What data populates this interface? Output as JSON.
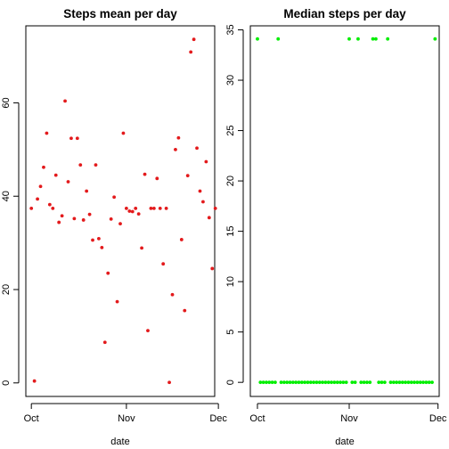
{
  "chart_data": [
    {
      "type": "scatter",
      "title": "Steps mean per day",
      "xlabel": "date",
      "ylabel": "",
      "color": "#e31a1c",
      "xlim": [
        -1.8,
        59.8
      ],
      "ylim": [
        -2.9,
        76.5
      ],
      "x_ticks": [
        {
          "label": "Oct",
          "value": 0
        },
        {
          "label": "Nov",
          "value": 31
        },
        {
          "label": "Dec",
          "value": 61
        }
      ],
      "y_ticks": [
        0,
        20,
        40,
        60
      ],
      "points": [
        {
          "x": 0,
          "y": 37.4
        },
        {
          "x": 1,
          "y": 0.4
        },
        {
          "x": 2,
          "y": 39.4
        },
        {
          "x": 3,
          "y": 42.1
        },
        {
          "x": 4,
          "y": 46.2
        },
        {
          "x": 5,
          "y": 53.5
        },
        {
          "x": 6,
          "y": 38.2
        },
        {
          "x": 7,
          "y": 37.4
        },
        {
          "x": 8,
          "y": 44.5
        },
        {
          "x": 9,
          "y": 34.4
        },
        {
          "x": 10,
          "y": 35.8
        },
        {
          "x": 11,
          "y": 60.4
        },
        {
          "x": 12,
          "y": 43.1
        },
        {
          "x": 13,
          "y": 52.4
        },
        {
          "x": 14,
          "y": 35.2
        },
        {
          "x": 15,
          "y": 52.4
        },
        {
          "x": 16,
          "y": 46.7
        },
        {
          "x": 17,
          "y": 34.9
        },
        {
          "x": 18,
          "y": 41.1
        },
        {
          "x": 19,
          "y": 36.1
        },
        {
          "x": 20,
          "y": 30.6
        },
        {
          "x": 21,
          "y": 46.7
        },
        {
          "x": 22,
          "y": 30.9
        },
        {
          "x": 23,
          "y": 29.0
        },
        {
          "x": 24,
          "y": 8.7
        },
        {
          "x": 25,
          "y": 23.5
        },
        {
          "x": 26,
          "y": 35.1
        },
        {
          "x": 27,
          "y": 39.8
        },
        {
          "x": 28,
          "y": 17.4
        },
        {
          "x": 29,
          "y": 34.1
        },
        {
          "x": 30,
          "y": 53.5
        },
        {
          "x": 31,
          "y": 37.4
        },
        {
          "x": 32,
          "y": 36.8
        },
        {
          "x": 33,
          "y": 36.7
        },
        {
          "x": 34,
          "y": 37.4
        },
        {
          "x": 35,
          "y": 36.2
        },
        {
          "x": 36,
          "y": 28.9
        },
        {
          "x": 37,
          "y": 44.7
        },
        {
          "x": 38,
          "y": 11.2
        },
        {
          "x": 39,
          "y": 37.4
        },
        {
          "x": 40,
          "y": 37.4
        },
        {
          "x": 41,
          "y": 43.8
        },
        {
          "x": 42,
          "y": 37.4
        },
        {
          "x": 43,
          "y": 25.5
        },
        {
          "x": 44,
          "y": 37.4
        },
        {
          "x": 45,
          "y": 0.1
        },
        {
          "x": 46,
          "y": 18.9
        },
        {
          "x": 47,
          "y": 50.0
        },
        {
          "x": 48,
          "y": 52.5
        },
        {
          "x": 49,
          "y": 30.7
        },
        {
          "x": 50,
          "y": 15.5
        },
        {
          "x": 51,
          "y": 44.4
        },
        {
          "x": 52,
          "y": 70.9
        },
        {
          "x": 53,
          "y": 73.6
        },
        {
          "x": 54,
          "y": 50.3
        },
        {
          "x": 55,
          "y": 41.1
        },
        {
          "x": 56,
          "y": 38.8
        },
        {
          "x": 57,
          "y": 47.4
        },
        {
          "x": 58,
          "y": 35.4
        },
        {
          "x": 59,
          "y": 24.5
        },
        {
          "x": 60,
          "y": 37.4
        }
      ]
    },
    {
      "type": "scatter",
      "title": "Median steps per day",
      "xlabel": "date",
      "ylabel": "",
      "color": "#00ee00",
      "xlim": [
        -2.4,
        61.4
      ],
      "ylim": [
        -1.4,
        35.4
      ],
      "x_ticks": [
        {
          "label": "Oct",
          "value": 0
        },
        {
          "label": "Nov",
          "value": 31
        },
        {
          "label": "Dec",
          "value": 61
        }
      ],
      "y_ticks": [
        0,
        5,
        10,
        15,
        20,
        25,
        30,
        35
      ],
      "points": [
        {
          "x": 0,
          "y": 34.1
        },
        {
          "x": 1,
          "y": 0
        },
        {
          "x": 2,
          "y": 0
        },
        {
          "x": 3,
          "y": 0
        },
        {
          "x": 4,
          "y": 0
        },
        {
          "x": 5,
          "y": 0
        },
        {
          "x": 6,
          "y": 0
        },
        {
          "x": 7,
          "y": 34.1
        },
        {
          "x": 8,
          "y": 0
        },
        {
          "x": 9,
          "y": 0
        },
        {
          "x": 10,
          "y": 0
        },
        {
          "x": 11,
          "y": 0
        },
        {
          "x": 12,
          "y": 0
        },
        {
          "x": 13,
          "y": 0
        },
        {
          "x": 14,
          "y": 0
        },
        {
          "x": 15,
          "y": 0
        },
        {
          "x": 16,
          "y": 0
        },
        {
          "x": 17,
          "y": 0
        },
        {
          "x": 18,
          "y": 0
        },
        {
          "x": 19,
          "y": 0
        },
        {
          "x": 20,
          "y": 0
        },
        {
          "x": 21,
          "y": 0
        },
        {
          "x": 22,
          "y": 0
        },
        {
          "x": 23,
          "y": 0
        },
        {
          "x": 24,
          "y": 0
        },
        {
          "x": 25,
          "y": 0
        },
        {
          "x": 26,
          "y": 0
        },
        {
          "x": 27,
          "y": 0
        },
        {
          "x": 28,
          "y": 0
        },
        {
          "x": 29,
          "y": 0
        },
        {
          "x": 30,
          "y": 0
        },
        {
          "x": 31,
          "y": 34.1
        },
        {
          "x": 32,
          "y": 0
        },
        {
          "x": 33,
          "y": 0
        },
        {
          "x": 34,
          "y": 34.1
        },
        {
          "x": 35,
          "y": 0
        },
        {
          "x": 36,
          "y": 0
        },
        {
          "x": 37,
          "y": 0
        },
        {
          "x": 38,
          "y": 0
        },
        {
          "x": 39,
          "y": 34.1
        },
        {
          "x": 40,
          "y": 34.1
        },
        {
          "x": 41,
          "y": 0
        },
        {
          "x": 42,
          "y": 0
        },
        {
          "x": 43,
          "y": 0
        },
        {
          "x": 44,
          "y": 34.1
        },
        {
          "x": 45,
          "y": 0
        },
        {
          "x": 46,
          "y": 0
        },
        {
          "x": 47,
          "y": 0
        },
        {
          "x": 48,
          "y": 0
        },
        {
          "x": 49,
          "y": 0
        },
        {
          "x": 50,
          "y": 0
        },
        {
          "x": 51,
          "y": 0
        },
        {
          "x": 52,
          "y": 0
        },
        {
          "x": 53,
          "y": 0
        },
        {
          "x": 54,
          "y": 0
        },
        {
          "x": 55,
          "y": 0
        },
        {
          "x": 56,
          "y": 0
        },
        {
          "x": 57,
          "y": 0
        },
        {
          "x": 58,
          "y": 0
        },
        {
          "x": 59,
          "y": 0
        },
        {
          "x": 60,
          "y": 34.1
        }
      ]
    }
  ]
}
